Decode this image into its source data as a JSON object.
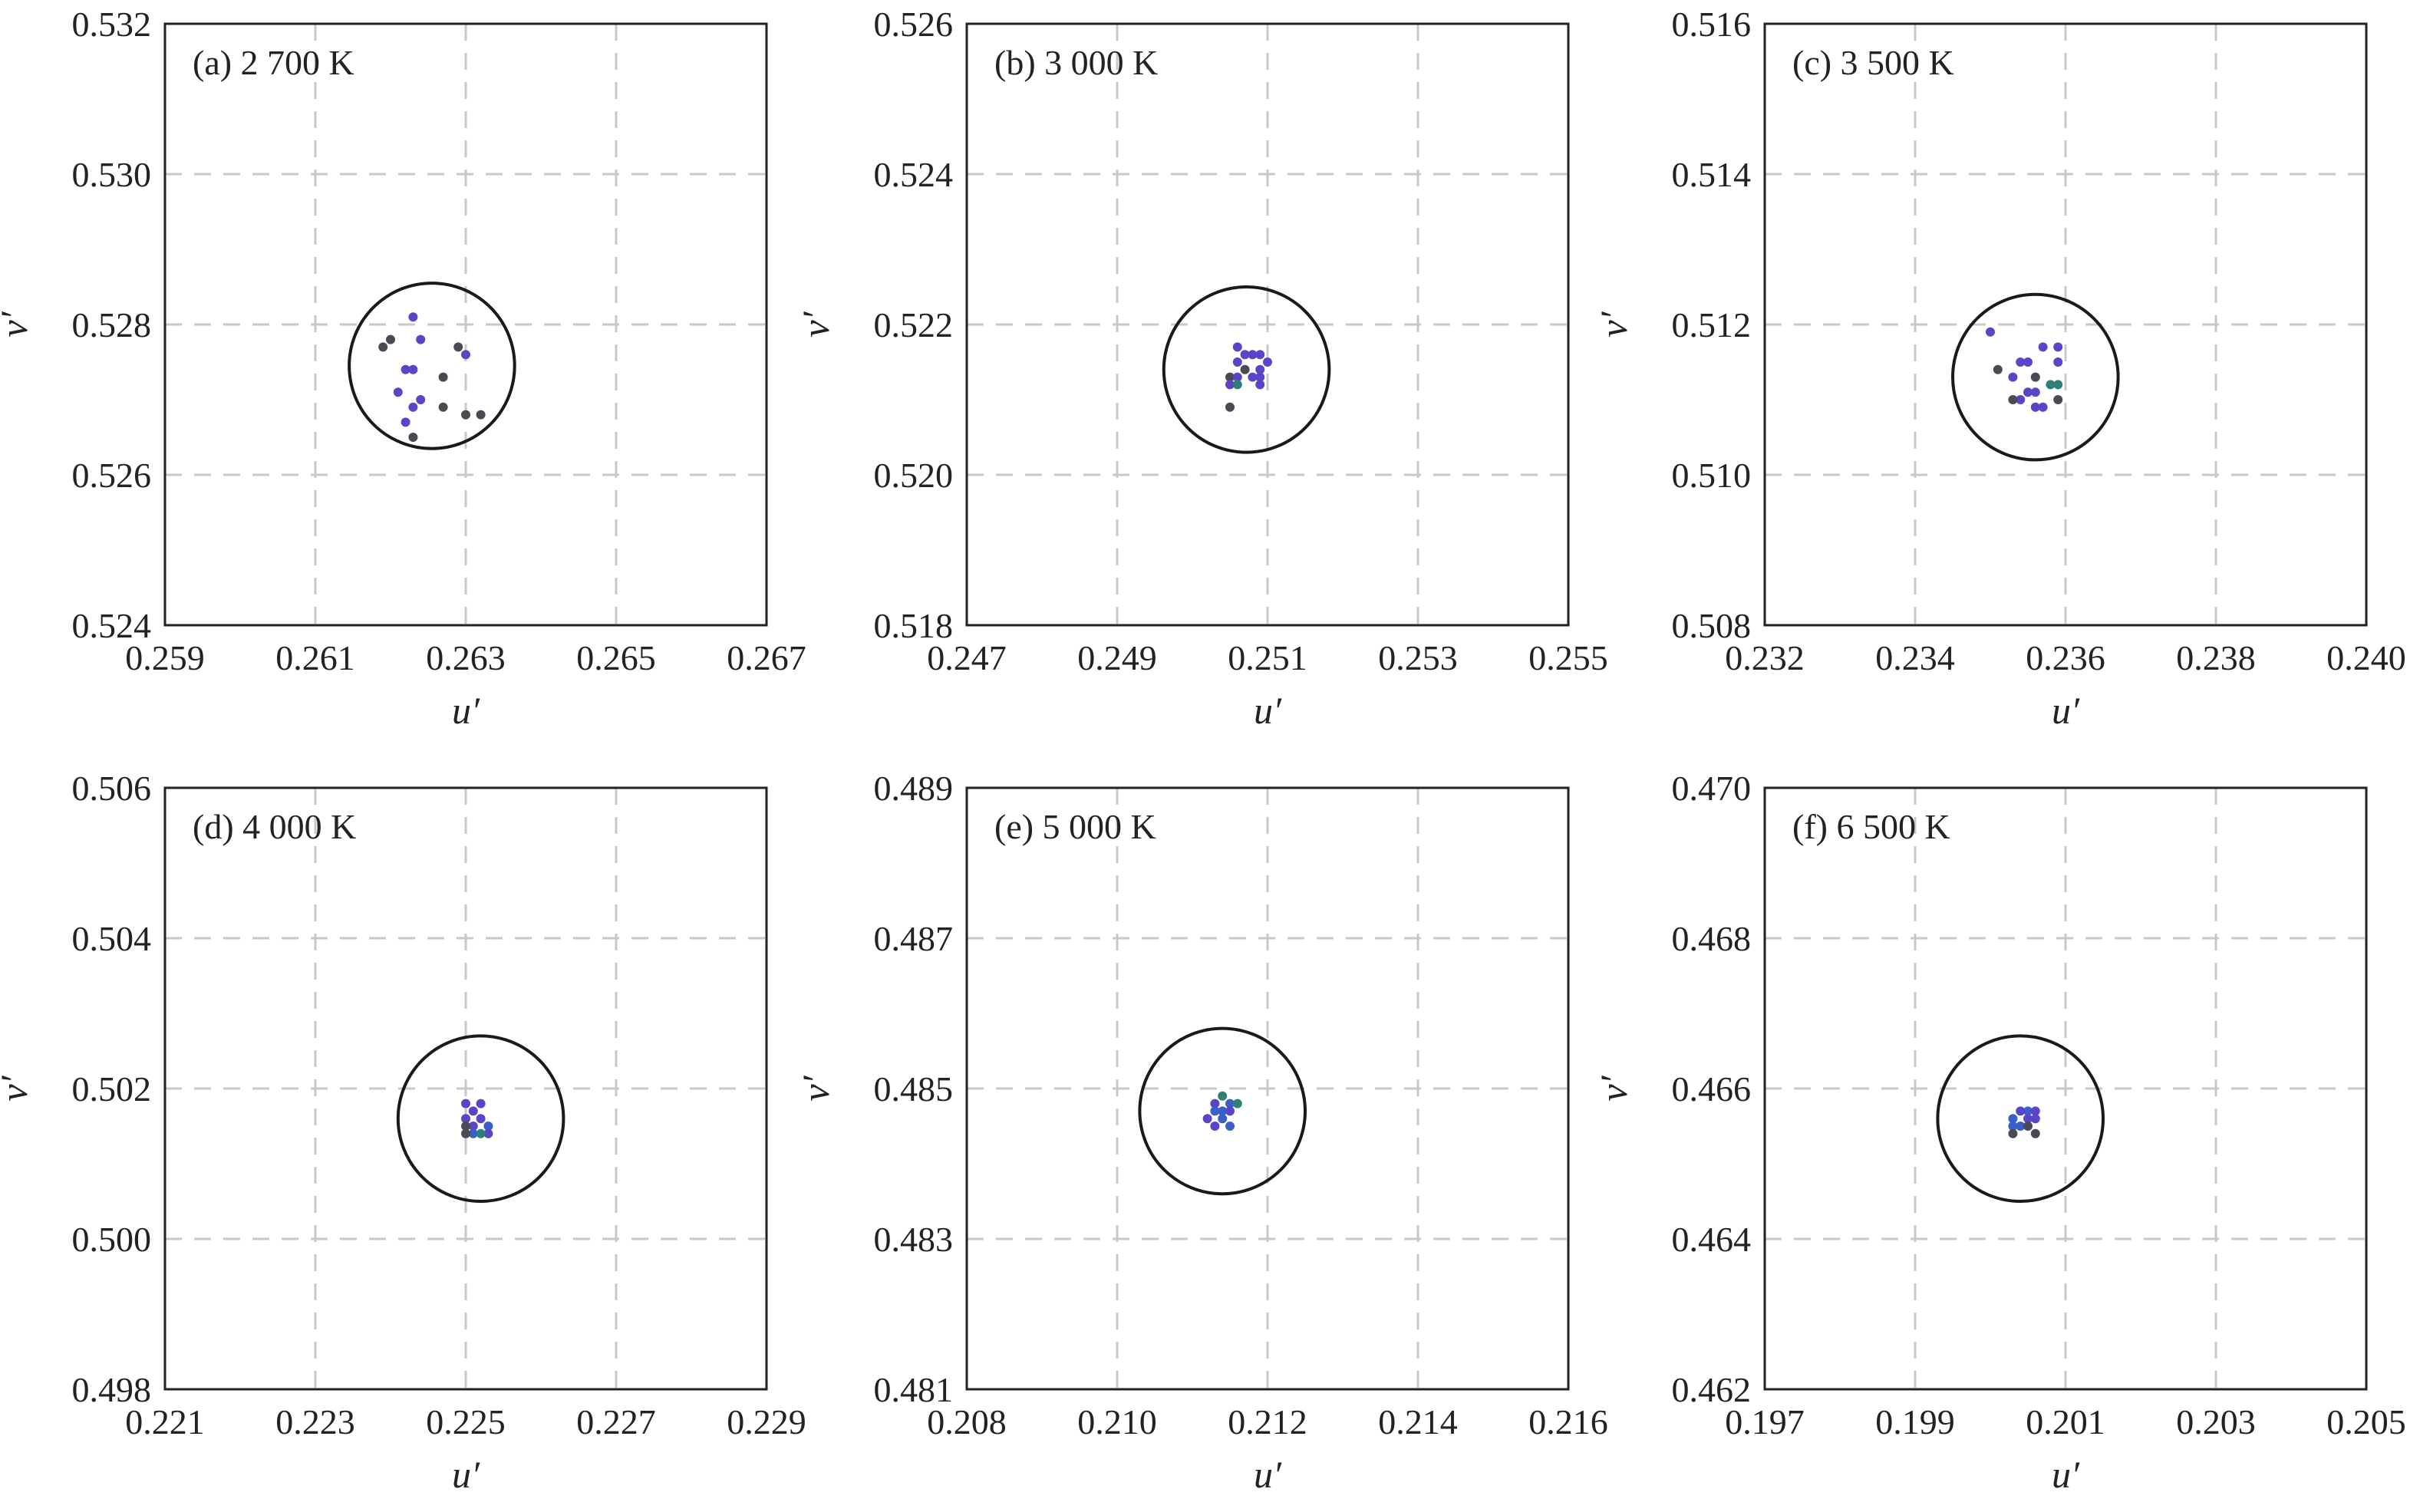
{
  "colors": {
    "axis": "#222222",
    "grid": "#c8c8c8",
    "circle": "#1a1a1a",
    "point_purple": "#5a45c9",
    "point_dark": "#4a4a55",
    "point_teal": "#2f7f77",
    "point_blue": "#3a5fc8"
  },
  "chart_data": [
    {
      "type": "scatter",
      "panel_label": "(a) 2 700 K",
      "xlabel": "u′",
      "ylabel": "v′",
      "xlim": [
        0.259,
        0.267
      ],
      "ylim": [
        0.524,
        0.532
      ],
      "xticks": [
        "0.259",
        "0.261",
        "0.263",
        "0.265",
        "0.267"
      ],
      "yticks": [
        "0.524",
        "0.526",
        "0.528",
        "0.530",
        "0.532"
      ],
      "grid": true,
      "circle": {
        "center": [
          0.26255,
          0.52745
        ],
        "radius": 0.0011
      },
      "points": [
        {
          "x": 0.2623,
          "y": 0.5281,
          "color": "point_purple"
        },
        {
          "x": 0.262,
          "y": 0.5278,
          "color": "point_dark"
        },
        {
          "x": 0.2619,
          "y": 0.5277,
          "color": "point_dark"
        },
        {
          "x": 0.2624,
          "y": 0.5278,
          "color": "point_purple"
        },
        {
          "x": 0.2629,
          "y": 0.5277,
          "color": "point_dark"
        },
        {
          "x": 0.263,
          "y": 0.5276,
          "color": "point_purple"
        },
        {
          "x": 0.2622,
          "y": 0.5274,
          "color": "point_purple"
        },
        {
          "x": 0.2623,
          "y": 0.5274,
          "color": "point_purple"
        },
        {
          "x": 0.2627,
          "y": 0.5273,
          "color": "point_dark"
        },
        {
          "x": 0.2621,
          "y": 0.5271,
          "color": "point_purple"
        },
        {
          "x": 0.2624,
          "y": 0.527,
          "color": "point_purple"
        },
        {
          "x": 0.2627,
          "y": 0.5269,
          "color": "point_dark"
        },
        {
          "x": 0.2623,
          "y": 0.5269,
          "color": "point_purple"
        },
        {
          "x": 0.263,
          "y": 0.5268,
          "color": "point_dark"
        },
        {
          "x": 0.2632,
          "y": 0.5268,
          "color": "point_dark"
        },
        {
          "x": 0.2622,
          "y": 0.5267,
          "color": "point_purple"
        },
        {
          "x": 0.2623,
          "y": 0.5265,
          "color": "point_dark"
        }
      ]
    },
    {
      "type": "scatter",
      "panel_label": "(b) 3 000 K",
      "xlabel": "u′",
      "ylabel": "v′",
      "xlim": [
        0.247,
        0.255
      ],
      "ylim": [
        0.518,
        0.526
      ],
      "xticks": [
        "0.247",
        "0.249",
        "0.251",
        "0.253",
        "0.255"
      ],
      "yticks": [
        "0.518",
        "0.520",
        "0.522",
        "0.524",
        "0.526"
      ],
      "grid": true,
      "circle": {
        "center": [
          0.25072,
          0.5214
        ],
        "radius": 0.0011
      },
      "points": [
        {
          "x": 0.2506,
          "y": 0.5217,
          "color": "point_purple"
        },
        {
          "x": 0.2507,
          "y": 0.5216,
          "color": "point_purple"
        },
        {
          "x": 0.2508,
          "y": 0.5216,
          "color": "point_purple"
        },
        {
          "x": 0.2509,
          "y": 0.5216,
          "color": "point_purple"
        },
        {
          "x": 0.2506,
          "y": 0.5215,
          "color": "point_purple"
        },
        {
          "x": 0.2507,
          "y": 0.5214,
          "color": "point_dark"
        },
        {
          "x": 0.2509,
          "y": 0.5214,
          "color": "point_purple"
        },
        {
          "x": 0.251,
          "y": 0.5215,
          "color": "point_purple"
        },
        {
          "x": 0.2505,
          "y": 0.5213,
          "color": "point_dark"
        },
        {
          "x": 0.2506,
          "y": 0.5213,
          "color": "point_purple"
        },
        {
          "x": 0.2508,
          "y": 0.5213,
          "color": "point_purple"
        },
        {
          "x": 0.2509,
          "y": 0.5213,
          "color": "point_purple"
        },
        {
          "x": 0.2505,
          "y": 0.5212,
          "color": "point_purple"
        },
        {
          "x": 0.2506,
          "y": 0.5212,
          "color": "point_teal"
        },
        {
          "x": 0.2509,
          "y": 0.5212,
          "color": "point_purple"
        },
        {
          "x": 0.2505,
          "y": 0.5209,
          "color": "point_dark"
        }
      ]
    },
    {
      "type": "scatter",
      "panel_label": "(c) 3 500 K",
      "xlabel": "u′",
      "ylabel": "v′",
      "xlim": [
        0.232,
        0.24
      ],
      "ylim": [
        0.508,
        0.516
      ],
      "xticks": [
        "0.232",
        "0.234",
        "0.236",
        "0.238",
        "0.240"
      ],
      "yticks": [
        "0.508",
        "0.510",
        "0.512",
        "0.514",
        "0.516"
      ],
      "grid": true,
      "circle": {
        "center": [
          0.2356,
          0.5113
        ],
        "radius": 0.0011
      },
      "points": [
        {
          "x": 0.235,
          "y": 0.5119,
          "color": "point_purple"
        },
        {
          "x": 0.2355,
          "y": 0.5115,
          "color": "point_purple"
        },
        {
          "x": 0.2354,
          "y": 0.5115,
          "color": "point_purple"
        },
        {
          "x": 0.2357,
          "y": 0.5117,
          "color": "point_purple"
        },
        {
          "x": 0.2359,
          "y": 0.5117,
          "color": "point_purple"
        },
        {
          "x": 0.2359,
          "y": 0.5115,
          "color": "point_purple"
        },
        {
          "x": 0.2351,
          "y": 0.5114,
          "color": "point_dark"
        },
        {
          "x": 0.2353,
          "y": 0.5113,
          "color": "point_purple"
        },
        {
          "x": 0.2356,
          "y": 0.5113,
          "color": "point_dark"
        },
        {
          "x": 0.2358,
          "y": 0.5112,
          "color": "point_teal"
        },
        {
          "x": 0.2359,
          "y": 0.5112,
          "color": "point_teal"
        },
        {
          "x": 0.2355,
          "y": 0.5111,
          "color": "point_purple"
        },
        {
          "x": 0.2356,
          "y": 0.5111,
          "color": "point_purple"
        },
        {
          "x": 0.2354,
          "y": 0.511,
          "color": "point_purple"
        },
        {
          "x": 0.2359,
          "y": 0.511,
          "color": "point_dark"
        },
        {
          "x": 0.2356,
          "y": 0.5109,
          "color": "point_purple"
        },
        {
          "x": 0.2357,
          "y": 0.5109,
          "color": "point_purple"
        },
        {
          "x": 0.2353,
          "y": 0.511,
          "color": "point_dark"
        }
      ]
    },
    {
      "type": "scatter",
      "panel_label": "(d) 4 000 K",
      "xlabel": "u′",
      "ylabel": "v′",
      "xlim": [
        0.221,
        0.229
      ],
      "ylim": [
        0.498,
        0.506
      ],
      "xticks": [
        "0.221",
        "0.223",
        "0.225",
        "0.227",
        "0.229"
      ],
      "yticks": [
        "0.498",
        "0.500",
        "0.502",
        "0.504",
        "0.506"
      ],
      "grid": true,
      "circle": {
        "center": [
          0.2252,
          0.5016
        ],
        "radius": 0.0011
      },
      "points": [
        {
          "x": 0.225,
          "y": 0.5018,
          "color": "point_purple"
        },
        {
          "x": 0.2252,
          "y": 0.5018,
          "color": "point_purple"
        },
        {
          "x": 0.2251,
          "y": 0.5017,
          "color": "point_purple"
        },
        {
          "x": 0.225,
          "y": 0.5016,
          "color": "point_purple"
        },
        {
          "x": 0.2252,
          "y": 0.5016,
          "color": "point_purple"
        },
        {
          "x": 0.2253,
          "y": 0.5015,
          "color": "point_blue"
        },
        {
          "x": 0.2251,
          "y": 0.5015,
          "color": "point_purple"
        },
        {
          "x": 0.225,
          "y": 0.5015,
          "color": "point_dark"
        },
        {
          "x": 0.2253,
          "y": 0.5014,
          "color": "point_purple"
        },
        {
          "x": 0.2251,
          "y": 0.5014,
          "color": "point_blue"
        },
        {
          "x": 0.2252,
          "y": 0.5014,
          "color": "point_teal"
        },
        {
          "x": 0.225,
          "y": 0.5014,
          "color": "point_dark"
        }
      ]
    },
    {
      "type": "scatter",
      "panel_label": "(e) 5 000 K",
      "xlabel": "u′",
      "ylabel": "v′",
      "xlim": [
        0.208,
        0.216
      ],
      "ylim": [
        0.481,
        0.489
      ],
      "xticks": [
        "0.208",
        "0.210",
        "0.212",
        "0.214",
        "0.216"
      ],
      "yticks": [
        "0.481",
        "0.483",
        "0.485",
        "0.487",
        "0.489"
      ],
      "grid": true,
      "circle": {
        "center": [
          0.2114,
          0.4847
        ],
        "radius": 0.0011
      },
      "points": [
        {
          "x": 0.2114,
          "y": 0.4849,
          "color": "point_teal"
        },
        {
          "x": 0.2115,
          "y": 0.4848,
          "color": "point_blue"
        },
        {
          "x": 0.2113,
          "y": 0.4848,
          "color": "point_purple"
        },
        {
          "x": 0.2116,
          "y": 0.4848,
          "color": "point_teal"
        },
        {
          "x": 0.2114,
          "y": 0.4847,
          "color": "point_blue"
        },
        {
          "x": 0.2115,
          "y": 0.4847,
          "color": "point_purple"
        },
        {
          "x": 0.2113,
          "y": 0.4847,
          "color": "point_blue"
        },
        {
          "x": 0.2112,
          "y": 0.4846,
          "color": "point_purple"
        },
        {
          "x": 0.2114,
          "y": 0.4846,
          "color": "point_blue"
        },
        {
          "x": 0.2115,
          "y": 0.4845,
          "color": "point_blue"
        },
        {
          "x": 0.2113,
          "y": 0.4845,
          "color": "point_purple"
        }
      ]
    },
    {
      "type": "scatter",
      "panel_label": "(f) 6 500 K",
      "xlabel": "u′",
      "ylabel": "v′",
      "xlim": [
        0.197,
        0.205
      ],
      "ylim": [
        0.462,
        0.47
      ],
      "xticks": [
        "0.197",
        "0.199",
        "0.201",
        "0.203",
        "0.205"
      ],
      "yticks": [
        "0.462",
        "0.464",
        "0.466",
        "0.468",
        "0.470"
      ],
      "grid": true,
      "circle": {
        "center": [
          0.2004,
          0.4656
        ],
        "radius": 0.0011
      },
      "points": [
        {
          "x": 0.2005,
          "y": 0.4657,
          "color": "point_blue"
        },
        {
          "x": 0.2006,
          "y": 0.4657,
          "color": "point_purple"
        },
        {
          "x": 0.2004,
          "y": 0.4657,
          "color": "point_purple"
        },
        {
          "x": 0.2003,
          "y": 0.4656,
          "color": "point_blue"
        },
        {
          "x": 0.2005,
          "y": 0.4656,
          "color": "point_purple"
        },
        {
          "x": 0.2006,
          "y": 0.4656,
          "color": "point_purple"
        },
        {
          "x": 0.2004,
          "y": 0.4655,
          "color": "point_blue"
        },
        {
          "x": 0.2005,
          "y": 0.4655,
          "color": "point_dark"
        },
        {
          "x": 0.2003,
          "y": 0.4655,
          "color": "point_blue"
        },
        {
          "x": 0.2003,
          "y": 0.4654,
          "color": "point_dark"
        },
        {
          "x": 0.2006,
          "y": 0.4654,
          "color": "point_dark"
        }
      ]
    }
  ]
}
